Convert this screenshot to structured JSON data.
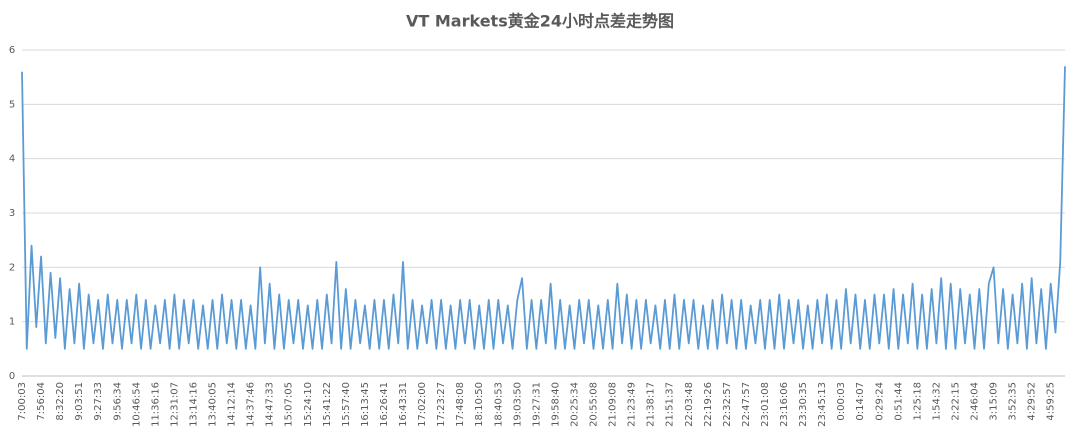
{
  "chart_data": {
    "type": "line",
    "title": "VT Markets黄金24小时点差走势图",
    "categories": [
      "7:00:03",
      null,
      null,
      null,
      "7:56:04",
      null,
      null,
      null,
      "8:32:20",
      null,
      null,
      null,
      "9:03:51",
      null,
      null,
      null,
      "9:27:33",
      null,
      null,
      null,
      "9:56:34",
      null,
      null,
      null,
      "10:46:54",
      null,
      null,
      null,
      "11:36:16",
      null,
      null,
      null,
      "12:31:07",
      null,
      null,
      null,
      "13:14:16",
      null,
      null,
      null,
      "13:40:05",
      null,
      null,
      null,
      "14:12:14",
      null,
      null,
      null,
      "14:37:46",
      null,
      null,
      null,
      "14:47:33",
      null,
      null,
      null,
      "15:07:05",
      null,
      null,
      null,
      "15:24:10",
      null,
      null,
      null,
      "15:41:22",
      null,
      null,
      null,
      "15:57:40",
      null,
      null,
      null,
      "16:13:45",
      null,
      null,
      null,
      "16:26:41",
      null,
      null,
      null,
      "16:43:31",
      null,
      null,
      null,
      "17:02:00",
      null,
      null,
      null,
      "17:23:27",
      null,
      null,
      null,
      "17:48:08",
      null,
      null,
      null,
      "18:10:50",
      null,
      null,
      null,
      "18:40:53",
      null,
      null,
      null,
      "19:03:50",
      null,
      null,
      null,
      "19:27:31",
      null,
      null,
      null,
      "19:58:40",
      null,
      null,
      null,
      "20:25:34",
      null,
      null,
      null,
      "20:55:08",
      null,
      null,
      null,
      "21:09:08",
      null,
      null,
      null,
      "21:23:49",
      null,
      null,
      null,
      "21:38:17",
      null,
      null,
      null,
      "21:51:37",
      null,
      null,
      null,
      "22:03:48",
      null,
      null,
      null,
      "22:19:26",
      null,
      null,
      null,
      "22:32:57",
      null,
      null,
      null,
      "22:47:57",
      null,
      null,
      null,
      "23:01:08",
      null,
      null,
      null,
      "23:16:06",
      null,
      null,
      null,
      "23:30:35",
      null,
      null,
      null,
      "23:45:13",
      null,
      null,
      null,
      "0:00:03",
      null,
      null,
      null,
      "0:14:07",
      null,
      null,
      null,
      "0:29:24",
      null,
      null,
      null,
      "0:51:44",
      null,
      null,
      null,
      "1:25:18",
      null,
      null,
      null,
      "1:54:32",
      null,
      null,
      null,
      "2:22:15",
      null,
      null,
      null,
      "2:46:04",
      null,
      null,
      null,
      "3:15:09",
      null,
      null,
      null,
      "3:52:35",
      null,
      null,
      null,
      "4:29:52",
      null,
      null,
      null,
      "4:59:25",
      null,
      null,
      null
    ],
    "series": [
      {
        "color": "#5b9bd5",
        "values": [
          5.6,
          0.5,
          2.4,
          0.9,
          2.2,
          0.6,
          1.9,
          0.7,
          1.8,
          0.5,
          1.6,
          0.6,
          1.7,
          0.5,
          1.5,
          0.6,
          1.4,
          0.5,
          1.5,
          0.6,
          1.4,
          0.5,
          1.4,
          0.6,
          1.5,
          0.5,
          1.4,
          0.5,
          1.3,
          0.6,
          1.4,
          0.5,
          1.5,
          0.5,
          1.4,
          0.6,
          1.4,
          0.5,
          1.3,
          0.5,
          1.4,
          0.5,
          1.5,
          0.6,
          1.4,
          0.5,
          1.4,
          0.5,
          1.3,
          0.5,
          2.0,
          0.6,
          1.7,
          0.5,
          1.5,
          0.5,
          1.4,
          0.6,
          1.4,
          0.5,
          1.3,
          0.5,
          1.4,
          0.5,
          1.5,
          0.6,
          2.1,
          0.5,
          1.6,
          0.5,
          1.4,
          0.6,
          1.3,
          0.5,
          1.4,
          0.5,
          1.4,
          0.5,
          1.5,
          0.6,
          2.1,
          0.5,
          1.4,
          0.5,
          1.3,
          0.6,
          1.4,
          0.5,
          1.4,
          0.5,
          1.3,
          0.5,
          1.4,
          0.6,
          1.4,
          0.5,
          1.3,
          0.5,
          1.4,
          0.5,
          1.4,
          0.6,
          1.3,
          0.5,
          1.4,
          1.8,
          0.5,
          1.4,
          0.5,
          1.4,
          0.6,
          1.7,
          0.5,
          1.4,
          0.5,
          1.3,
          0.5,
          1.4,
          0.6,
          1.4,
          0.5,
          1.3,
          0.5,
          1.4,
          0.5,
          1.7,
          0.6,
          1.5,
          0.5,
          1.4,
          0.5,
          1.4,
          0.6,
          1.3,
          0.5,
          1.4,
          0.5,
          1.5,
          0.5,
          1.4,
          0.6,
          1.4,
          0.5,
          1.3,
          0.5,
          1.4,
          0.5,
          1.5,
          0.6,
          1.4,
          0.5,
          1.4,
          0.5,
          1.3,
          0.6,
          1.4,
          0.5,
          1.4,
          0.5,
          1.5,
          0.5,
          1.4,
          0.6,
          1.4,
          0.5,
          1.3,
          0.5,
          1.4,
          0.6,
          1.5,
          0.5,
          1.4,
          0.5,
          1.6,
          0.6,
          1.5,
          0.5,
          1.4,
          0.5,
          1.5,
          0.6,
          1.5,
          0.5,
          1.6,
          0.5,
          1.5,
          0.6,
          1.7,
          0.5,
          1.5,
          0.5,
          1.6,
          0.6,
          1.8,
          0.5,
          1.7,
          0.5,
          1.6,
          0.6,
          1.5,
          0.5,
          1.6,
          0.5,
          1.7,
          2.0,
          0.6,
          1.6,
          0.5,
          1.5,
          0.6,
          1.7,
          0.5,
          1.8,
          0.6,
          1.6,
          0.5,
          1.7,
          0.8,
          2.1,
          5.7
        ]
      }
    ],
    "ylim": [
      0,
      6
    ],
    "yticks": [
      0,
      1,
      2,
      3,
      4,
      5,
      6
    ],
    "grid": true
  }
}
